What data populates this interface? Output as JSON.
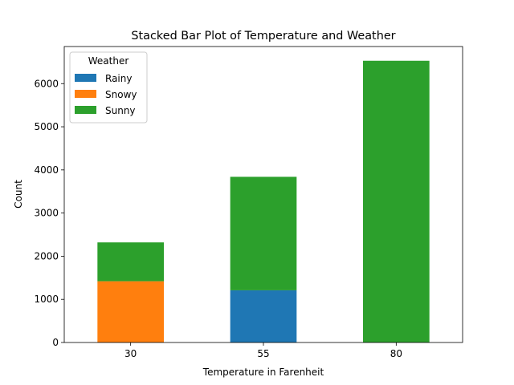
{
  "chart_data": {
    "type": "bar",
    "stacked": true,
    "title": "Stacked Bar Plot of Temperature and Weather",
    "xlabel": "Temperature in Farenheit",
    "ylabel": "Count",
    "categories": [
      "30",
      "55",
      "80"
    ],
    "ylim": [
      0,
      6860
    ],
    "yticks": [
      0,
      1000,
      2000,
      3000,
      4000,
      5000,
      6000
    ],
    "grid": false,
    "legend": {
      "title": "Weather",
      "placement": "top-left"
    },
    "series": [
      {
        "name": "Rainy",
        "color": "#1f77b4",
        "values": [
          0,
          1210,
          0
        ]
      },
      {
        "name": "Snowy",
        "color": "#ff7f0e",
        "values": [
          1420,
          0,
          0
        ]
      },
      {
        "name": "Sunny",
        "color": "#2ca02c",
        "values": [
          900,
          2630,
          6530
        ]
      }
    ]
  }
}
